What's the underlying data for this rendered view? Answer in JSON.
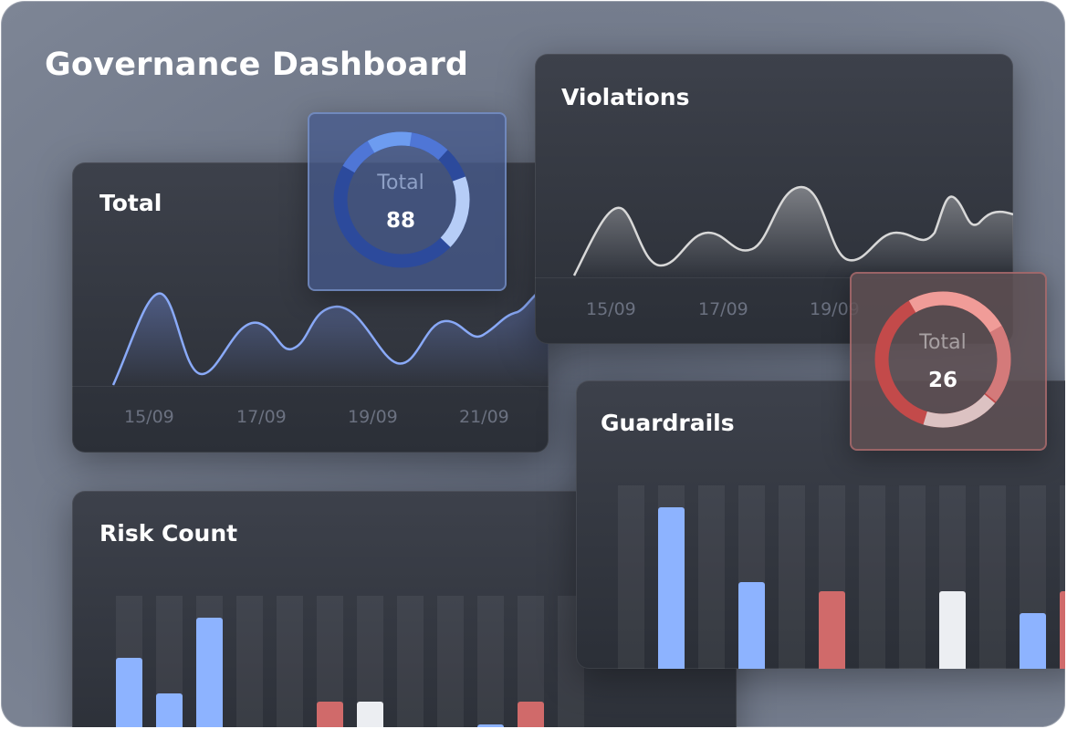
{
  "page": {
    "title": "Governance Dashboard"
  },
  "total_card": {
    "title": "Total",
    "ticks": [
      "15/09",
      "17/09",
      "19/09",
      "21/09"
    ]
  },
  "violations_card": {
    "title": "Violations",
    "ticks": [
      "15/09",
      "17/09",
      "19/09"
    ]
  },
  "risk_card": {
    "title": "Risk Count"
  },
  "guardrails_card": {
    "title": "Guardrails"
  },
  "donut_blue": {
    "label": "Total",
    "value": "88"
  },
  "donut_red": {
    "label": "Total",
    "value": "26"
  },
  "colors": {
    "blue": "#8db3ff",
    "red": "#d06a6a",
    "white": "#eceef2",
    "line_white": "#dcdcdc"
  }
}
